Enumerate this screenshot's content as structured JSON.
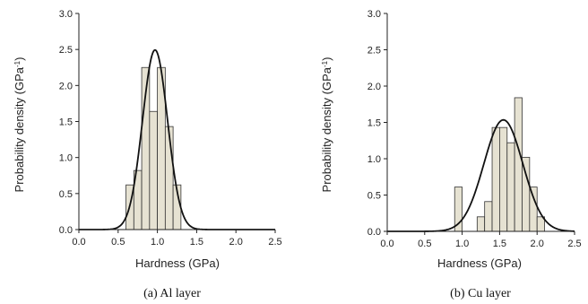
{
  "chart_data": [
    {
      "type": "bar",
      "subtype": "histogram-with-normal-fit",
      "caption": "(a) Al layer",
      "xlabel": "Hardness (GPa)",
      "ylabel": "Probability density (GPa",
      "ylabel_sup": "-1",
      "ylabel_close": ")",
      "xlim": [
        0.0,
        2.5
      ],
      "ylim": [
        0.0,
        3.0
      ],
      "xticks": [
        "0.0",
        "0.5",
        "1.0",
        "1.5",
        "2.0",
        "2.5"
      ],
      "yticks": [
        "0.0",
        "0.5",
        "1.0",
        "1.5",
        "2.0",
        "2.5",
        "3.0"
      ],
      "bin_width": 0.1,
      "bins": [
        {
          "start": 0.6,
          "value": 0.62
        },
        {
          "start": 0.7,
          "value": 0.82
        },
        {
          "start": 0.8,
          "value": 2.25
        },
        {
          "start": 0.9,
          "value": 1.64
        },
        {
          "start": 1.0,
          "value": 2.25
        },
        {
          "start": 1.1,
          "value": 1.43
        },
        {
          "start": 1.2,
          "value": 0.62
        }
      ],
      "fit": {
        "mean": 0.97,
        "sd": 0.16
      },
      "bar_color": "#e6e2d2",
      "grid": false
    },
    {
      "type": "bar",
      "subtype": "histogram-with-normal-fit",
      "caption": "(b) Cu layer",
      "xlabel": "Hardness (GPa)",
      "ylabel": "Probability density (GPa",
      "ylabel_sup": "-1",
      "ylabel_close": ")",
      "xlim": [
        0.0,
        2.5
      ],
      "ylim": [
        0.0,
        3.0
      ],
      "xticks": [
        "0.0",
        "0.5",
        "1.0",
        "1.5",
        "2.0",
        "2.5"
      ],
      "yticks": [
        "0.0",
        "0.5",
        "1.0",
        "1.5",
        "2.0",
        "2.5",
        "3.0"
      ],
      "bin_width": 0.1,
      "bins": [
        {
          "start": 0.9,
          "value": 0.61
        },
        {
          "start": 1.2,
          "value": 0.2
        },
        {
          "start": 1.3,
          "value": 0.41
        },
        {
          "start": 1.4,
          "value": 1.43
        },
        {
          "start": 1.5,
          "value": 1.43
        },
        {
          "start": 1.6,
          "value": 1.22
        },
        {
          "start": 1.7,
          "value": 1.84
        },
        {
          "start": 1.8,
          "value": 1.02
        },
        {
          "start": 1.9,
          "value": 0.61
        },
        {
          "start": 2.0,
          "value": 0.2
        }
      ],
      "fit": {
        "mean": 1.55,
        "sd": 0.26
      },
      "bar_color": "#e6e2d2",
      "grid": false
    }
  ]
}
